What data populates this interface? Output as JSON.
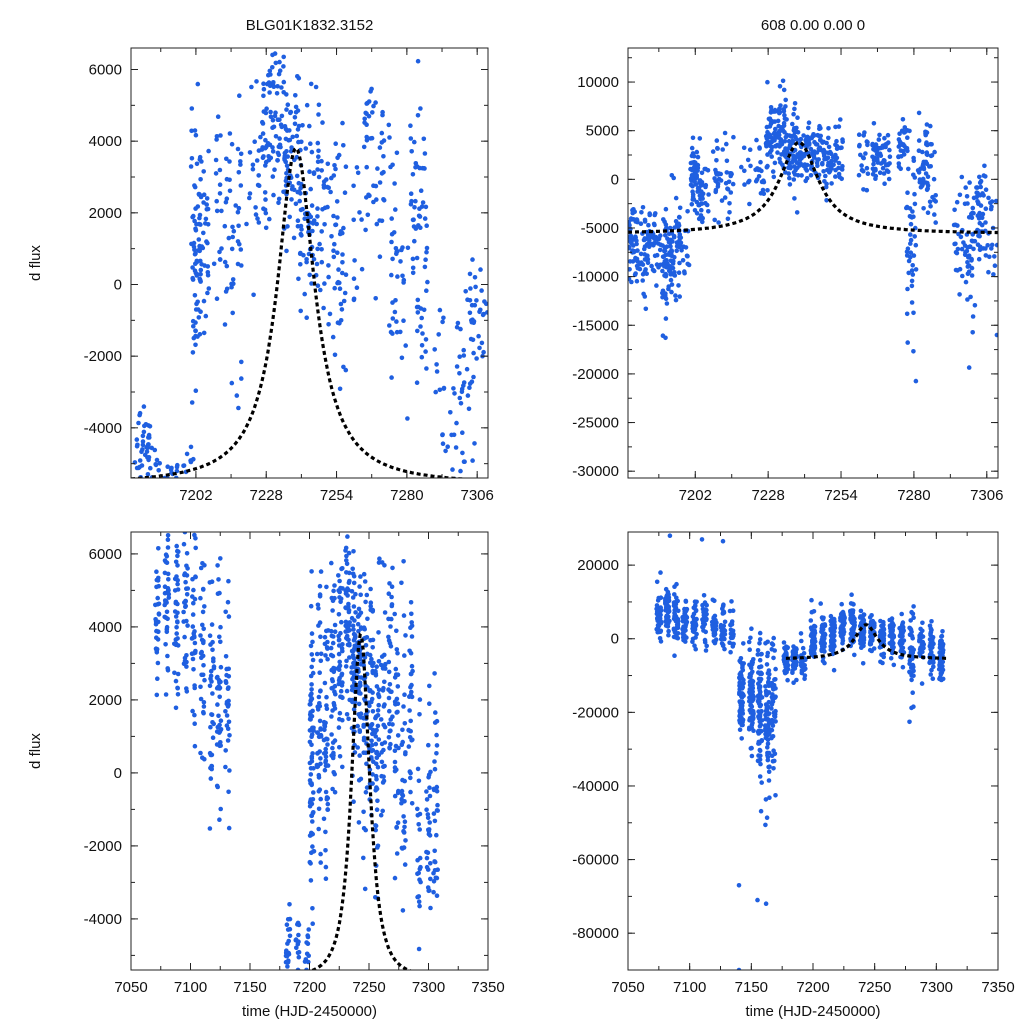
{
  "figure": {
    "object_title": "BLG01K1832.3152",
    "stats_title": "608  0.00  0.00  0"
  },
  "colors": {
    "points": "#1f5fe0",
    "model": "#000000"
  },
  "chart_data": [
    {
      "id": "top-left",
      "type": "scatter",
      "title": "BLG01K1832.3152",
      "xlabel": "",
      "ylabel": "d flux",
      "xlim": [
        7178,
        7310
      ],
      "ylim": [
        -5400,
        6600
      ],
      "xticks": [
        7202,
        7228,
        7254,
        7280,
        7306
      ],
      "yticks": [
        -4000,
        -2000,
        0,
        2000,
        4000,
        6000
      ],
      "clusters": [
        [
          7181,
          -4800,
          600,
          22,
          4
        ],
        [
          7184,
          -4500,
          500,
          18,
          4
        ],
        [
          7186,
          -5000,
          400,
          10,
          4
        ],
        [
          7190,
          -5200,
          300,
          10,
          4
        ],
        [
          7194,
          -5100,
          250,
          8,
          4
        ],
        [
          7199,
          -5000,
          300,
          8,
          4
        ],
        [
          7202,
          500,
          1800,
          70,
          4
        ],
        [
          7205,
          1000,
          1500,
          35,
          4
        ],
        [
          7210,
          2000,
          1200,
          18,
          4
        ],
        [
          7214,
          1000,
          1800,
          18,
          4
        ],
        [
          7217,
          1500,
          1800,
          28,
          4
        ],
        [
          7222,
          2500,
          1500,
          8,
          4
        ],
        [
          7225,
          3500,
          1200,
          12,
          4
        ],
        [
          7228,
          4000,
          1300,
          40,
          4
        ],
        [
          7232,
          4500,
          1300,
          40,
          4
        ],
        [
          7236,
          3500,
          1200,
          45,
          4
        ],
        [
          7240,
          3000,
          1400,
          45,
          4
        ],
        [
          7244,
          2000,
          1300,
          40,
          4
        ],
        [
          7248,
          2000,
          1600,
          32,
          4
        ],
        [
          7252,
          1500,
          1400,
          25,
          4
        ],
        [
          7256,
          1000,
          2000,
          32,
          4
        ],
        [
          7262,
          1500,
          1800,
          12,
          4
        ],
        [
          7266,
          4000,
          1200,
          26,
          4
        ],
        [
          7270,
          3000,
          1600,
          22,
          4
        ],
        [
          7275,
          1000,
          1800,
          28,
          4
        ],
        [
          7279,
          -500,
          1800,
          12,
          4
        ],
        [
          7283,
          2000,
          2000,
          32,
          4
        ],
        [
          7286,
          1000,
          2000,
          32,
          4
        ],
        [
          7292,
          -2000,
          1500,
          15,
          4
        ],
        [
          7296,
          -4500,
          700,
          10,
          4
        ],
        [
          7300,
          -2500,
          1500,
          25,
          4
        ],
        [
          7304,
          -1500,
          1500,
          30,
          4
        ],
        [
          7308,
          -1000,
          1500,
          15,
          4
        ]
      ],
      "model": {
        "t0": 7239,
        "base": -5600,
        "amp": 9400,
        "tau": 8.4,
        "mode": "lorentz"
      }
    },
    {
      "id": "top-right",
      "type": "scatter",
      "title": "608  0.00  0.00  0",
      "xlabel": "",
      "ylabel": "",
      "xlim": [
        7178,
        7310
      ],
      "ylim": [
        -30700,
        13500
      ],
      "xticks": [
        7202,
        7228,
        7254,
        7280,
        7306
      ],
      "yticks": [
        -30000,
        -25000,
        -20000,
        -15000,
        -10000,
        -5000,
        0,
        5000,
        10000
      ],
      "clusters": [
        [
          7180,
          -6500,
          2200,
          55,
          4
        ],
        [
          7184,
          -7000,
          2500,
          45,
          4
        ],
        [
          7188,
          -6500,
          2000,
          30,
          4
        ],
        [
          7192,
          -8000,
          2500,
          65,
          4
        ],
        [
          7195,
          -7000,
          3000,
          40,
          4
        ],
        [
          7198,
          -7500,
          1800,
          20,
          4
        ],
        [
          7202,
          500,
          1800,
          55,
          4
        ],
        [
          7205,
          -2000,
          2000,
          30,
          4
        ],
        [
          7210,
          0,
          2000,
          25,
          4
        ],
        [
          7214,
          -500,
          2500,
          20,
          4
        ],
        [
          7220,
          500,
          1500,
          10,
          4
        ],
        [
          7225,
          1000,
          2000,
          18,
          4
        ],
        [
          7229,
          5000,
          2000,
          55,
          4
        ],
        [
          7233,
          4500,
          2000,
          55,
          4
        ],
        [
          7237,
          3000,
          2000,
          55,
          4
        ],
        [
          7241,
          3000,
          1500,
          45,
          4
        ],
        [
          7245,
          2500,
          1500,
          40,
          4
        ],
        [
          7249,
          1500,
          1500,
          38,
          4
        ],
        [
          7253,
          2500,
          1500,
          25,
          4
        ],
        [
          7262,
          2000,
          1800,
          20,
          4
        ],
        [
          7267,
          2500,
          1500,
          38,
          4
        ],
        [
          7270,
          1500,
          1500,
          25,
          4
        ],
        [
          7276,
          3000,
          1500,
          28,
          4
        ],
        [
          7279,
          -7000,
          5000,
          45,
          4
        ],
        [
          7283,
          1000,
          2000,
          32,
          4
        ],
        [
          7286,
          500,
          2500,
          28,
          4
        ],
        [
          7296,
          -6000,
          2500,
          22,
          4
        ],
        [
          7300,
          -7000,
          3500,
          45,
          4
        ],
        [
          7304,
          -4000,
          3000,
          45,
          4
        ],
        [
          7308,
          -5000,
          3000,
          18,
          4
        ]
      ],
      "model": {
        "t0": 7239,
        "base": -5600,
        "amp": 9400,
        "tau": 8.4,
        "mode": "lorentz"
      }
    },
    {
      "id": "bottom-left",
      "type": "scatter",
      "title": "",
      "xlabel": "time (HJD-2450000)",
      "ylabel": "d flux",
      "xlim": [
        7050,
        7350
      ],
      "ylim": [
        -5400,
        6600
      ],
      "xticks": [
        7050,
        7100,
        7150,
        7200,
        7250,
        7300,
        7350
      ],
      "yticks": [
        -4000,
        -2000,
        0,
        2000,
        4000,
        6000
      ],
      "clusters": [
        [
          7072,
          4500,
          1300,
          30,
          4
        ],
        [
          7080,
          5000,
          1300,
          38,
          4
        ],
        [
          7088,
          4500,
          1400,
          38,
          4
        ],
        [
          7096,
          4000,
          1500,
          32,
          4
        ],
        [
          7103,
          4000,
          1500,
          32,
          4
        ],
        [
          7110,
          3500,
          1600,
          32,
          4
        ],
        [
          7118,
          2500,
          1600,
          32,
          4
        ],
        [
          7124,
          2000,
          1700,
          38,
          4
        ],
        [
          7131,
          1500,
          1800,
          30,
          4
        ],
        [
          7182,
          -4800,
          600,
          28,
          4
        ],
        [
          7190,
          -5000,
          500,
          18,
          4
        ],
        [
          7198,
          -5000,
          400,
          12,
          4
        ],
        [
          7202,
          500,
          2000,
          75,
          4
        ],
        [
          7208,
          1500,
          2000,
          45,
          4
        ],
        [
          7214,
          1000,
          2000,
          45,
          4
        ],
        [
          7220,
          2500,
          1600,
          45,
          4
        ],
        [
          7226,
          3000,
          1600,
          45,
          4
        ],
        [
          7232,
          4500,
          1300,
          55,
          4
        ],
        [
          7237,
          3000,
          1400,
          55,
          4
        ],
        [
          7242,
          2500,
          1400,
          55,
          4
        ],
        [
          7247,
          2000,
          1500,
          45,
          4
        ],
        [
          7252,
          1500,
          1600,
          45,
          4
        ],
        [
          7257,
          1000,
          2000,
          45,
          4
        ],
        [
          7262,
          2000,
          1800,
          32,
          4
        ],
        [
          7268,
          3000,
          1500,
          32,
          4
        ],
        [
          7273,
          1500,
          1800,
          32,
          4
        ],
        [
          7279,
          500,
          2000,
          32,
          4
        ],
        [
          7285,
          1500,
          2200,
          32,
          4
        ],
        [
          7292,
          -2000,
          1800,
          22,
          4
        ],
        [
          7300,
          -1500,
          2000,
          30,
          4
        ],
        [
          7306,
          -1000,
          2000,
          30,
          4
        ]
      ],
      "model": {
        "t0": 7243,
        "base": -5600,
        "amp": 9400,
        "tau": 11.5,
        "mode": "pow"
      }
    },
    {
      "id": "bottom-right",
      "type": "scatter",
      "title": "",
      "xlabel": "time (HJD-2450000)",
      "ylabel": "",
      "xlim": [
        7050,
        7350
      ],
      "ylim": [
        -90000,
        29000
      ],
      "xticks": [
        7050,
        7100,
        7150,
        7200,
        7250,
        7300,
        7350
      ],
      "yticks": [
        -80000,
        -60000,
        -40000,
        -20000,
        0,
        20000
      ],
      "clusters": [
        [
          7075,
          6000,
          3500,
          40,
          4
        ],
        [
          7082,
          7000,
          4000,
          40,
          4
        ],
        [
          7089,
          6000,
          4000,
          40,
          4
        ],
        [
          7096,
          5000,
          3500,
          40,
          4
        ],
        [
          7104,
          4000,
          3000,
          40,
          4
        ],
        [
          7112,
          4000,
          3000,
          30,
          4
        ],
        [
          7120,
          3000,
          3000,
          30,
          4
        ],
        [
          7127,
          2000,
          3000,
          28,
          4
        ],
        [
          7134,
          2000,
          3000,
          20,
          4
        ],
        [
          7142,
          -14000,
          6000,
          70,
          4
        ],
        [
          7150,
          -16000,
          7000,
          80,
          4
        ],
        [
          7157,
          -20000,
          9000,
          80,
          4
        ],
        [
          7163,
          -22000,
          11000,
          70,
          4
        ],
        [
          7168,
          -18000,
          9000,
          45,
          4
        ],
        [
          7178,
          -6000,
          2500,
          38,
          4
        ],
        [
          7185,
          -5500,
          2500,
          38,
          4
        ],
        [
          7192,
          -6000,
          2500,
          38,
          4
        ],
        [
          7200,
          -1000,
          3000,
          50,
          4
        ],
        [
          7208,
          0,
          3000,
          45,
          4
        ],
        [
          7216,
          1000,
          3000,
          45,
          4
        ],
        [
          7224,
          3000,
          3000,
          50,
          4
        ],
        [
          7232,
          4000,
          3000,
          55,
          4
        ],
        [
          7240,
          2000,
          3000,
          55,
          4
        ],
        [
          7248,
          1000,
          3000,
          45,
          4
        ],
        [
          7256,
          0,
          3000,
          45,
          4
        ],
        [
          7264,
          1000,
          3000,
          32,
          4
        ],
        [
          7272,
          0,
          3000,
          38,
          4
        ],
        [
          7280,
          -5000,
          6000,
          45,
          4
        ],
        [
          7288,
          -1000,
          3000,
          32,
          4
        ],
        [
          7296,
          -3000,
          3500,
          38,
          4
        ],
        [
          7304,
          -5000,
          4000,
          38,
          4
        ]
      ],
      "outliers": [
        [
          7084,
          28000
        ],
        [
          7110,
          27000
        ],
        [
          7127,
          26500
        ],
        [
          7140,
          -67000
        ],
        [
          7155,
          -71000
        ],
        [
          7162,
          -72000
        ],
        [
          7140,
          -90000
        ]
      ],
      "model": {
        "t0": 7243,
        "base": -5600,
        "amp": 9400,
        "tau": 11.5,
        "mode": "lorentz",
        "xmin": 7178,
        "xmax": 7310
      }
    }
  ]
}
